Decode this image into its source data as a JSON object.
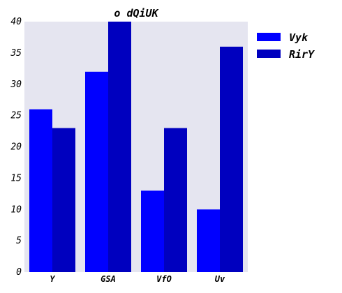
{
  "chart_data": {
    "type": "bar",
    "title": "o dQiUK",
    "xlabel": "",
    "ylabel": "",
    "categories": [
      "Y",
      "GSA",
      "VfO",
      "Uv"
    ],
    "series": [
      {
        "name": "Vyk",
        "values": [
          26,
          32,
          13,
          10
        ],
        "color": "#0000ff"
      },
      {
        "name": "RirY",
        "values": [
          23,
          40,
          23,
          36
        ],
        "color": "#0000bf"
      }
    ],
    "ylim": [
      0,
      40
    ],
    "yticks": [
      0,
      5,
      10,
      15,
      20,
      25,
      30,
      35,
      40
    ],
    "grid": false,
    "background": "#e5e5f0",
    "legend_position": "outside-right-top"
  }
}
